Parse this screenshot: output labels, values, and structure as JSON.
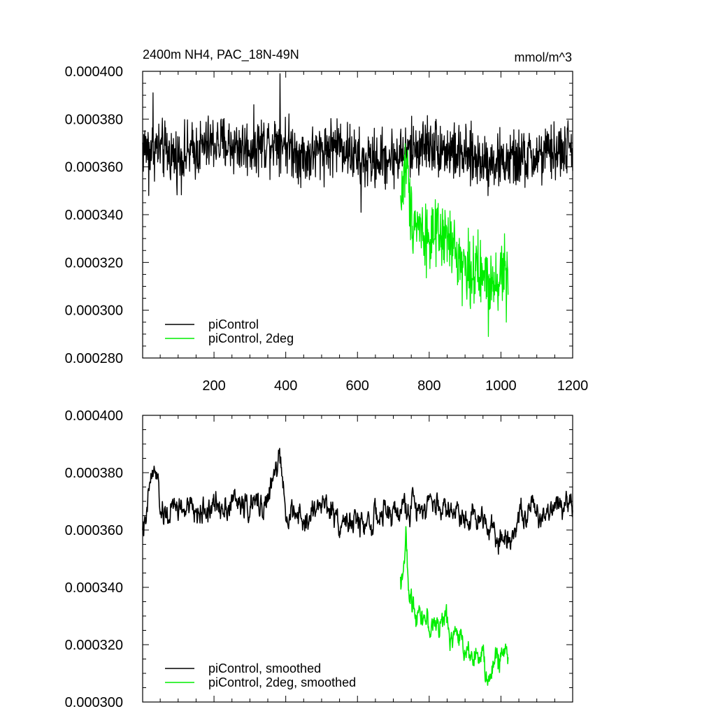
{
  "chart_data": [
    {
      "type": "line",
      "title": "2400m NH4, PAC_18N-49N",
      "units": "mmol/m^3",
      "xlabel": "",
      "ylabel": "",
      "xlim": [
        1,
        1200
      ],
      "ylim": [
        0.00028,
        0.0004
      ],
      "x_ticks": [
        200,
        400,
        600,
        800,
        1000,
        1200
      ],
      "y_ticks": [
        0.00028,
        0.0003,
        0.00032,
        0.00034,
        0.00036,
        0.00038,
        0.0004
      ],
      "y_tick_labels": [
        "0.000280",
        "0.000300",
        "0.000320",
        "0.000340",
        "0.000360",
        "0.000380",
        "0.000400"
      ],
      "show_x_tick_labels": true,
      "legend": {
        "position": "bottom-left",
        "entries": [
          "piControl",
          "piControl, 2deg"
        ]
      },
      "series": [
        {
          "name": "piControl",
          "color": "#000000",
          "x_start": 1,
          "x_end": 1200,
          "noise": 6e-06,
          "anchors": [
            [
              1,
              0.000368
            ],
            [
              40,
              0.000368
            ],
            [
              100,
              0.000364
            ],
            [
              200,
              0.00037
            ],
            [
              300,
              0.000368
            ],
            [
              384,
              0.000372
            ],
            [
              450,
              0.000364
            ],
            [
              550,
              0.00037
            ],
            [
              610,
              0.000362
            ],
            [
              700,
              0.000364
            ],
            [
              800,
              0.00037
            ],
            [
              900,
              0.000364
            ],
            [
              1000,
              0.000362
            ],
            [
              1100,
              0.000364
            ],
            [
              1200,
              0.000368
            ]
          ],
          "spikes": [
            [
              384,
              0.000399
            ],
            [
              610,
              0.000341
            ],
            [
              18,
              0.000348
            ],
            [
              30,
              0.000391
            ]
          ]
        },
        {
          "name": "piControl, 2deg",
          "color": "#00ee00",
          "x_start": 720,
          "x_end": 1020,
          "noise": 7e-06,
          "anchors": [
            [
              720,
              0.000345
            ],
            [
              735,
              0.000362
            ],
            [
              750,
              0.00034
            ],
            [
              800,
              0.00033
            ],
            [
              850,
              0.00033
            ],
            [
              900,
              0.000318
            ],
            [
              950,
              0.000314
            ],
            [
              1000,
              0.000314
            ],
            [
              1020,
              0.000318
            ]
          ],
          "spikes": [
            [
              740,
              0.000367
            ],
            [
              965,
              0.000289
            ],
            [
              1015,
              0.000295
            ],
            [
              1010,
              0.000332
            ]
          ]
        }
      ]
    },
    {
      "type": "line",
      "title": "",
      "units": "",
      "xlabel": "",
      "ylabel": "",
      "xlim": [
        1,
        1200
      ],
      "ylim": [
        0.0003,
        0.0004
      ],
      "x_ticks": [
        200,
        400,
        600,
        800,
        1000,
        1200
      ],
      "y_ticks": [
        0.0003,
        0.00032,
        0.00034,
        0.00036,
        0.00038,
        0.0004
      ],
      "y_tick_labels": [
        "0.000300",
        "0.000320",
        "0.000340",
        "0.000360",
        "0.000380",
        "0.000400"
      ],
      "show_x_tick_labels": false,
      "legend": {
        "position": "bottom-left",
        "entries": [
          "piControl, smoothed",
          "piControl, 2deg, smoothed"
        ]
      },
      "series": [
        {
          "name": "piControl, smoothed",
          "color": "#000000",
          "x_start": 1,
          "x_end": 1200,
          "noise": 3e-06,
          "anchors": [
            [
              1,
              0.000362
            ],
            [
              10,
              0.00036
            ],
            [
              22,
              0.000378
            ],
            [
              38,
              0.00038
            ],
            [
              55,
              0.000364
            ],
            [
              100,
              0.000368
            ],
            [
              150,
              0.000366
            ],
            [
              200,
              0.000368
            ],
            [
              250,
              0.00037
            ],
            [
              300,
              0.000368
            ],
            [
              350,
              0.00037
            ],
            [
              384,
              0.000386
            ],
            [
              395,
              0.000368
            ],
            [
              450,
              0.000362
            ],
            [
              500,
              0.00037
            ],
            [
              550,
              0.000364
            ],
            [
              600,
              0.000362
            ],
            [
              650,
              0.000364
            ],
            [
              700,
              0.000366
            ],
            [
              800,
              0.00037
            ],
            [
              880,
              0.000366
            ],
            [
              960,
              0.000364
            ],
            [
              1010,
              0.000356
            ],
            [
              1060,
              0.000366
            ],
            [
              1120,
              0.000366
            ],
            [
              1180,
              0.000372
            ],
            [
              1200,
              0.000368
            ]
          ]
        },
        {
          "name": "piControl, 2deg, smoothed",
          "color": "#00ee00",
          "x_start": 720,
          "x_end": 1020,
          "noise": 3e-06,
          "anchors": [
            [
              720,
              0.000342
            ],
            [
              735,
              0.000355
            ],
            [
              745,
              0.000335
            ],
            [
              780,
              0.000332
            ],
            [
              800,
              0.000326
            ],
            [
              840,
              0.000328
            ],
            [
              880,
              0.000322
            ],
            [
              920,
              0.000318
            ],
            [
              950,
              0.000314
            ],
            [
              965,
              0.000307
            ],
            [
              985,
              0.000314
            ],
            [
              1000,
              0.000318
            ],
            [
              1020,
              0.000316
            ]
          ]
        }
      ]
    }
  ]
}
